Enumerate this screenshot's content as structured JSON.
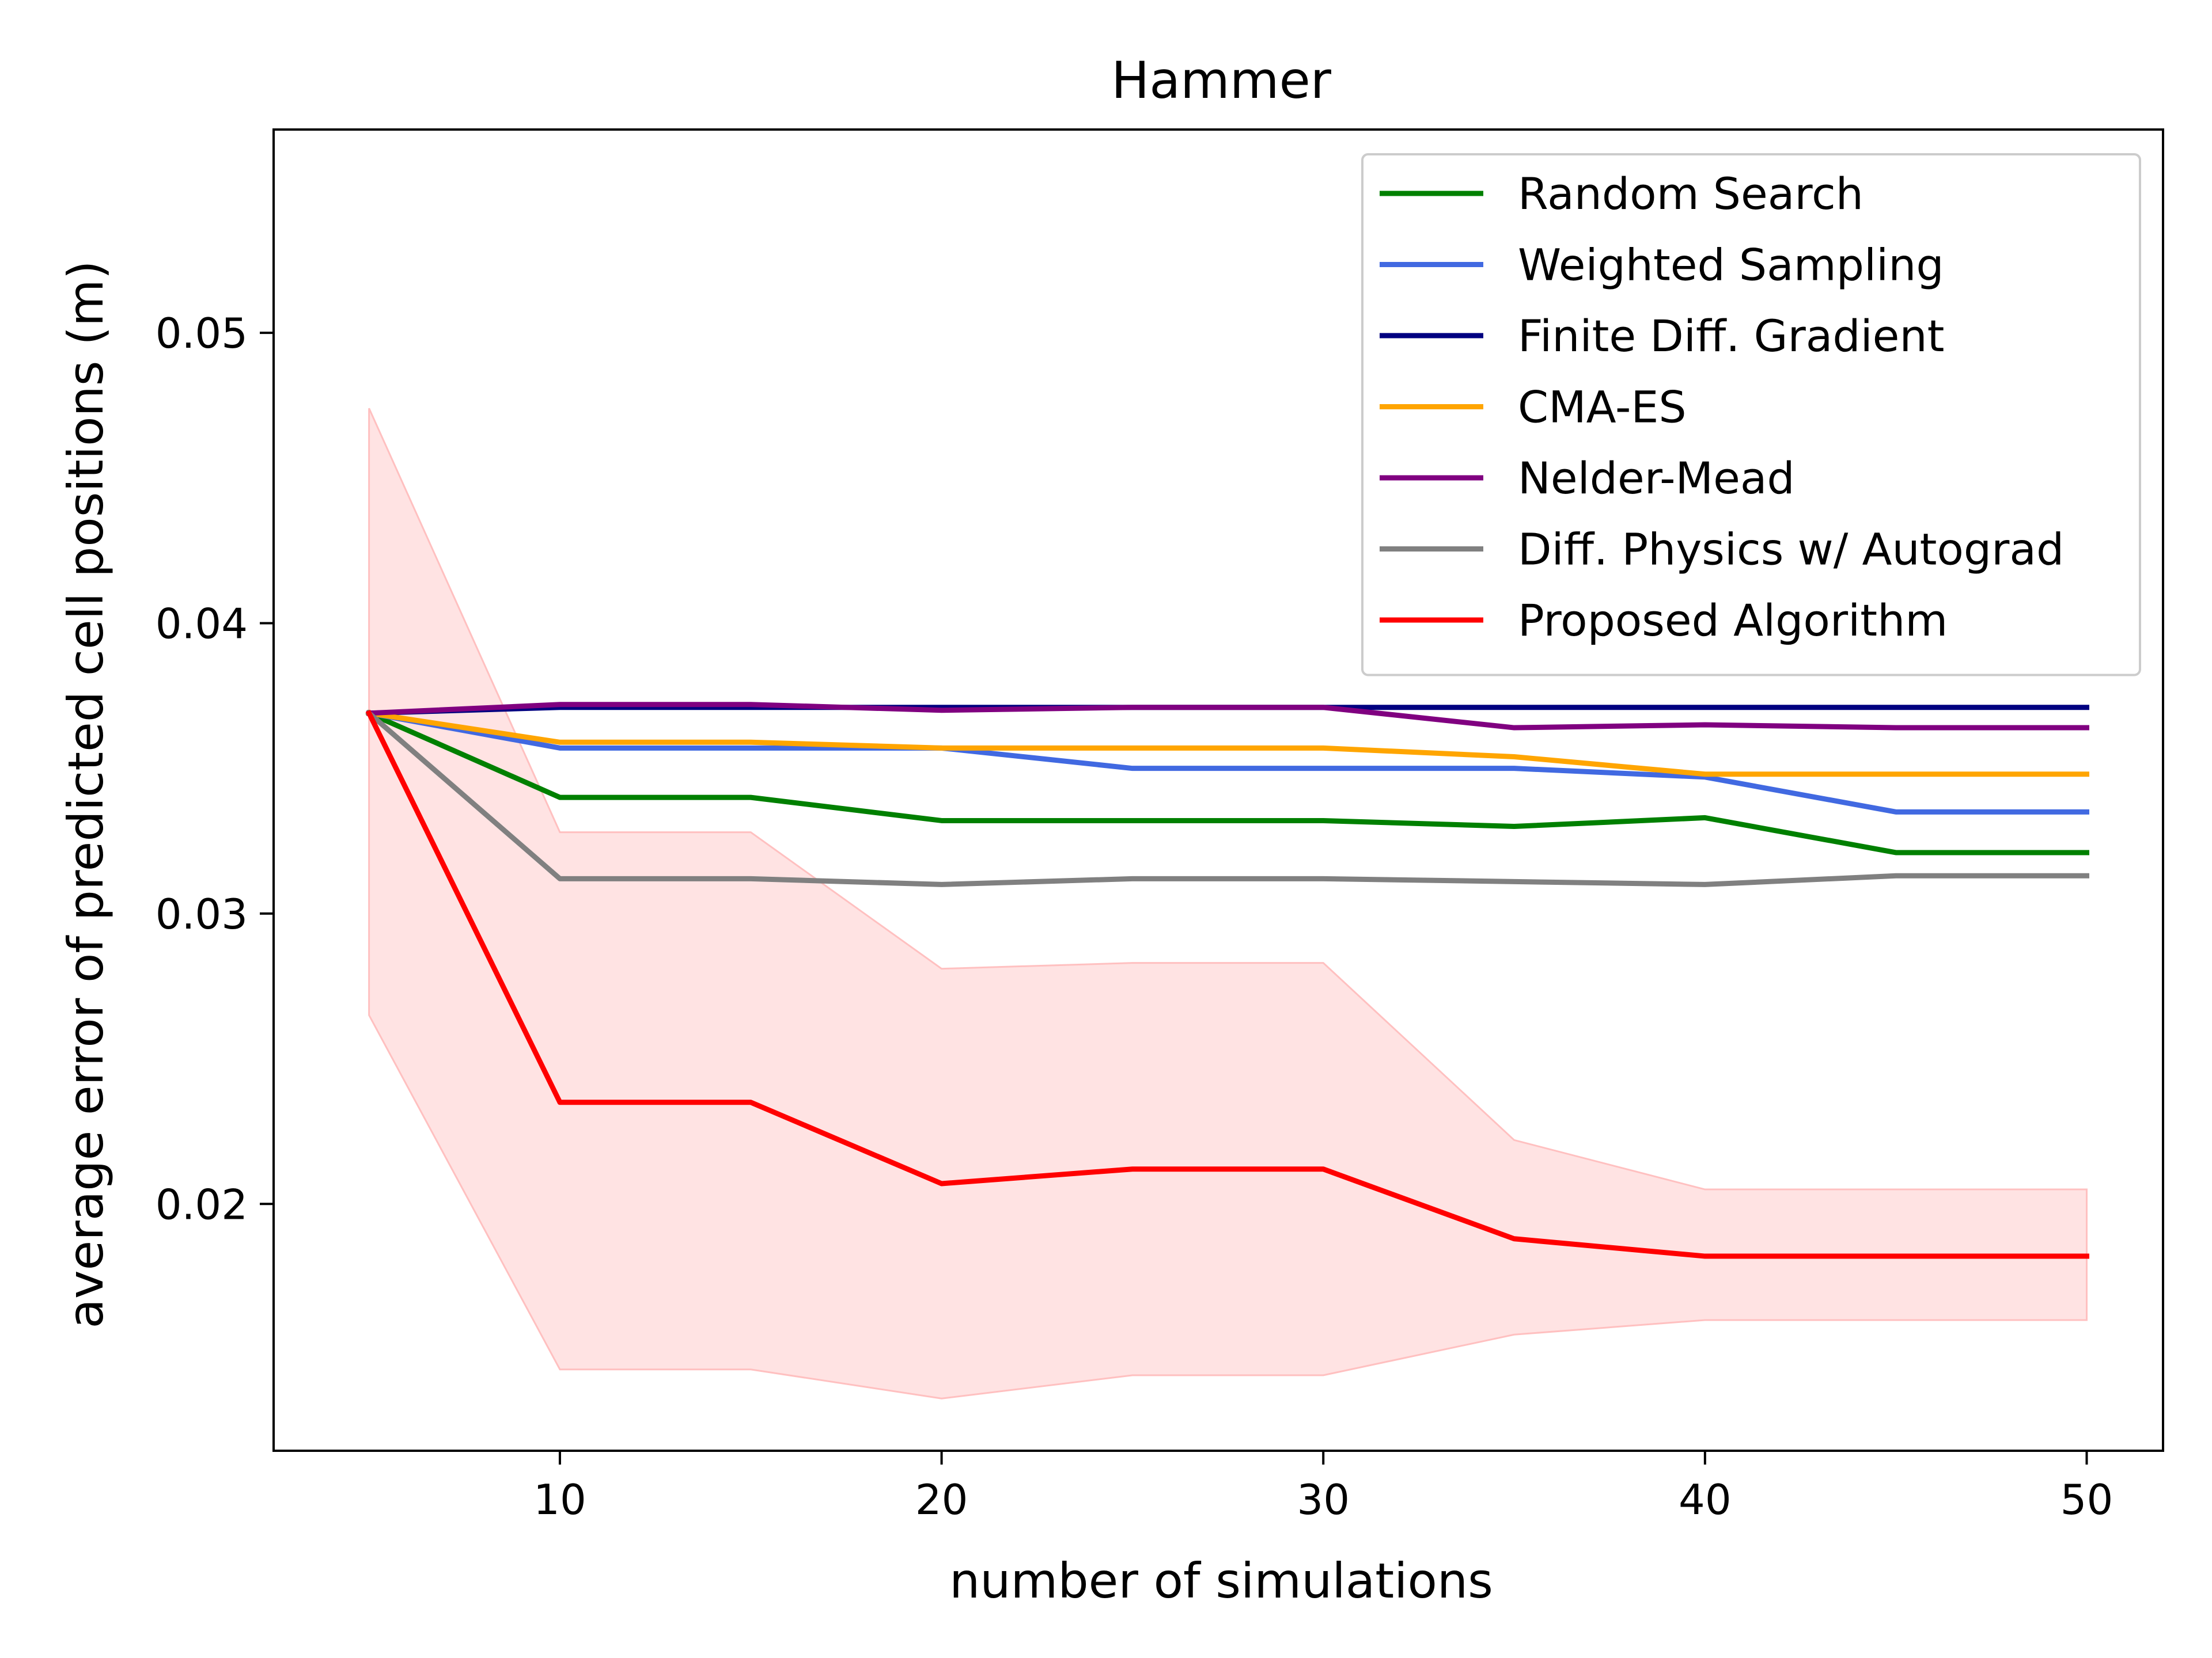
{
  "chart_data": {
    "type": "line",
    "title": "Hammer",
    "xlabel": "number of simulations",
    "ylabel": "average error of predicted cell positions (m)",
    "xlim": [
      2.5,
      52.0
    ],
    "ylim": [
      0.0115,
      0.057
    ],
    "xticks": [
      10,
      20,
      30,
      40,
      50
    ],
    "xtick_labels": [
      "10",
      "20",
      "30",
      "40",
      "50"
    ],
    "yticks": [
      0.02,
      0.03,
      0.04,
      0.05
    ],
    "ytick_labels": [
      "0.02",
      "0.03",
      "0.04",
      "0.05"
    ],
    "grid": false,
    "legend_position": "top-right",
    "x": [
      5,
      10,
      15,
      20,
      25,
      30,
      35,
      40,
      45,
      50
    ],
    "series": [
      {
        "name": "Random Search",
        "color": "#008000",
        "values": [
          0.0369,
          0.034,
          0.034,
          0.0332,
          0.0332,
          0.0332,
          0.033,
          0.0333,
          0.0321,
          0.0321
        ]
      },
      {
        "name": "Weighted Sampling",
        "color": "#4169e1",
        "values": [
          0.0369,
          0.0357,
          0.0357,
          0.0357,
          0.035,
          0.035,
          0.035,
          0.0347,
          0.0335,
          0.0335
        ]
      },
      {
        "name": "Finite Diff. Gradient",
        "color": "#000080",
        "values": [
          0.0369,
          0.0371,
          0.0371,
          0.0371,
          0.0371,
          0.0371,
          0.0371,
          0.0371,
          0.0371,
          0.0371
        ]
      },
      {
        "name": "CMA-ES",
        "color": "#ffa500",
        "values": [
          0.0369,
          0.0359,
          0.0359,
          0.0357,
          0.0357,
          0.0357,
          0.0354,
          0.0348,
          0.0348,
          0.0348
        ]
      },
      {
        "name": "Nelder-Mead",
        "color": "#800080",
        "values": [
          0.0369,
          0.0372,
          0.0372,
          0.037,
          0.0371,
          0.0371,
          0.0364,
          0.0365,
          0.0364,
          0.0364
        ]
      },
      {
        "name": "Diff. Physics w/ Autograd",
        "color": "#808080",
        "values": [
          0.0369,
          0.0312,
          0.0312,
          0.031,
          0.0312,
          0.0312,
          0.0311,
          0.031,
          0.0313,
          0.0313
        ]
      },
      {
        "name": "Proposed Algorithm",
        "color": "#ff0000",
        "values": [
          0.0369,
          0.0235,
          0.0235,
          0.0207,
          0.0212,
          0.0212,
          0.0188,
          0.0182,
          0.0182,
          0.0182
        ],
        "band_upper": [
          0.0474,
          0.0328,
          0.0328,
          0.0281,
          0.0283,
          0.0283,
          0.0222,
          0.0205,
          0.0205,
          0.0205
        ],
        "band_lower": [
          0.0265,
          0.0143,
          0.0143,
          0.0133,
          0.0141,
          0.0141,
          0.0155,
          0.016,
          0.016,
          0.016
        ],
        "band_color": "#ffc0c0"
      }
    ]
  }
}
